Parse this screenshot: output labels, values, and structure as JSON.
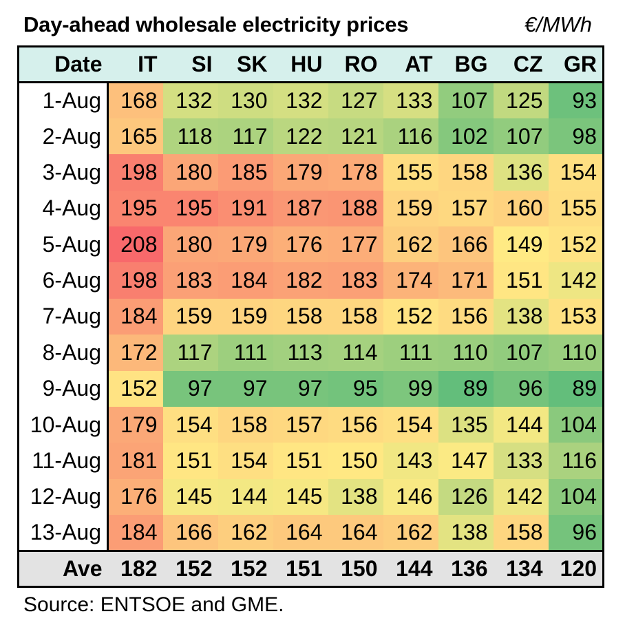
{
  "title": "Day-ahead wholesale electricity prices",
  "unit": "€/MWh",
  "source": "Source: ENTSOE and GME.",
  "chart_data": {
    "type": "heatmap",
    "title": "Day-ahead wholesale electricity prices",
    "unit": "€/MWh",
    "row_header": "Date",
    "columns": [
      "IT",
      "SI",
      "SK",
      "HU",
      "RO",
      "AT",
      "BG",
      "CZ",
      "GR"
    ],
    "rows": [
      {
        "date": "1-Aug",
        "values": [
          168,
          132,
          130,
          132,
          127,
          133,
          107,
          125,
          93
        ]
      },
      {
        "date": "2-Aug",
        "values": [
          165,
          118,
          117,
          122,
          121,
          116,
          102,
          107,
          98
        ]
      },
      {
        "date": "3-Aug",
        "values": [
          198,
          180,
          185,
          179,
          178,
          155,
          158,
          136,
          154
        ]
      },
      {
        "date": "4-Aug",
        "values": [
          195,
          195,
          191,
          187,
          188,
          159,
          157,
          160,
          155
        ]
      },
      {
        "date": "5-Aug",
        "values": [
          208,
          180,
          179,
          176,
          177,
          162,
          166,
          149,
          152
        ]
      },
      {
        "date": "6-Aug",
        "values": [
          198,
          183,
          184,
          182,
          183,
          174,
          171,
          151,
          142
        ]
      },
      {
        "date": "7-Aug",
        "values": [
          184,
          159,
          159,
          158,
          158,
          152,
          156,
          138,
          153
        ]
      },
      {
        "date": "8-Aug",
        "values": [
          172,
          117,
          111,
          113,
          114,
          111,
          110,
          107,
          110
        ]
      },
      {
        "date": "9-Aug",
        "values": [
          152,
          97,
          97,
          97,
          95,
          99,
          89,
          96,
          89
        ]
      },
      {
        "date": "10-Aug",
        "values": [
          179,
          154,
          158,
          157,
          156,
          154,
          135,
          144,
          104
        ]
      },
      {
        "date": "11-Aug",
        "values": [
          181,
          151,
          154,
          151,
          150,
          143,
          147,
          133,
          116
        ]
      },
      {
        "date": "12-Aug",
        "values": [
          176,
          145,
          144,
          145,
          138,
          146,
          126,
          142,
          104
        ]
      },
      {
        "date": "13-Aug",
        "values": [
          184,
          166,
          162,
          164,
          164,
          162,
          138,
          158,
          96
        ]
      }
    ],
    "summary": {
      "label": "Ave",
      "values": [
        182,
        152,
        152,
        151,
        150,
        144,
        136,
        134,
        120
      ]
    },
    "colors": {
      "low": "#63be7b",
      "mid": "#ffeb84",
      "high": "#f8696b",
      "header_bg": "#d6f0ec",
      "footer_bg": "#e3e3e3"
    }
  }
}
